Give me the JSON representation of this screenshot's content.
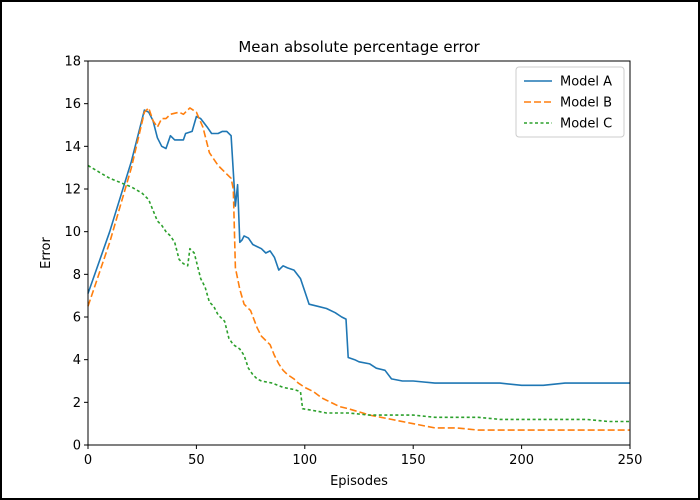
{
  "chart_data": {
    "type": "line",
    "title": "Mean absolute percentage error",
    "xlabel": "Episodes",
    "ylabel": "Error",
    "xlim": [
      0,
      250
    ],
    "ylim": [
      0,
      18
    ],
    "xticks": [
      "0",
      "50",
      "100",
      "150",
      "200",
      "250"
    ],
    "yticks": [
      "0",
      "2",
      "4",
      "6",
      "8",
      "10",
      "12",
      "14",
      "16",
      "18"
    ],
    "grid": false,
    "legend_position": "top-right",
    "series": [
      {
        "name": "Model A",
        "color": "#1f77b4",
        "style": "solid",
        "points": [
          [
            0,
            7.1
          ],
          [
            10,
            10.0
          ],
          [
            20,
            13.3
          ],
          [
            26,
            15.7
          ],
          [
            28,
            15.6
          ],
          [
            30,
            15.2
          ],
          [
            32,
            14.4
          ],
          [
            34,
            14.0
          ],
          [
            36,
            13.9
          ],
          [
            38,
            14.5
          ],
          [
            40,
            14.3
          ],
          [
            44,
            14.3
          ],
          [
            45,
            14.6
          ],
          [
            48,
            14.7
          ],
          [
            50,
            15.4
          ],
          [
            52,
            15.3
          ],
          [
            55,
            14.9
          ],
          [
            57,
            14.6
          ],
          [
            60,
            14.6
          ],
          [
            62,
            14.7
          ],
          [
            64,
            14.7
          ],
          [
            66,
            14.5
          ],
          [
            68,
            11.2
          ],
          [
            69,
            12.2
          ],
          [
            70,
            9.5
          ],
          [
            71,
            9.6
          ],
          [
            72,
            9.8
          ],
          [
            74,
            9.7
          ],
          [
            76,
            9.4
          ],
          [
            78,
            9.3
          ],
          [
            80,
            9.2
          ],
          [
            82,
            9.0
          ],
          [
            84,
            9.1
          ],
          [
            86,
            8.8
          ],
          [
            88,
            8.2
          ],
          [
            90,
            8.4
          ],
          [
            92,
            8.3
          ],
          [
            95,
            8.2
          ],
          [
            98,
            7.8
          ],
          [
            100,
            7.2
          ],
          [
            102,
            6.6
          ],
          [
            106,
            6.5
          ],
          [
            110,
            6.4
          ],
          [
            114,
            6.2
          ],
          [
            117,
            6.0
          ],
          [
            119,
            5.9
          ],
          [
            120,
            4.1
          ],
          [
            123,
            4.0
          ],
          [
            125,
            3.9
          ],
          [
            130,
            3.8
          ],
          [
            133,
            3.6
          ],
          [
            137,
            3.5
          ],
          [
            140,
            3.1
          ],
          [
            145,
            3.0
          ],
          [
            150,
            3.0
          ],
          [
            160,
            2.9
          ],
          [
            170,
            2.9
          ],
          [
            180,
            2.9
          ],
          [
            190,
            2.9
          ],
          [
            200,
            2.8
          ],
          [
            210,
            2.8
          ],
          [
            220,
            2.9
          ],
          [
            230,
            2.9
          ],
          [
            240,
            2.9
          ],
          [
            250,
            2.9
          ]
        ]
      },
      {
        "name": "Model B",
        "color": "#ff7f0e",
        "style": "dashed",
        "points": [
          [
            0,
            6.5
          ],
          [
            10,
            9.5
          ],
          [
            20,
            13.0
          ],
          [
            26,
            15.6
          ],
          [
            28,
            15.8
          ],
          [
            30,
            15.2
          ],
          [
            32,
            14.9
          ],
          [
            34,
            15.3
          ],
          [
            36,
            15.3
          ],
          [
            38,
            15.5
          ],
          [
            42,
            15.6
          ],
          [
            44,
            15.5
          ],
          [
            47,
            15.8
          ],
          [
            50,
            15.6
          ],
          [
            53,
            14.9
          ],
          [
            56,
            13.7
          ],
          [
            60,
            13.1
          ],
          [
            63,
            12.8
          ],
          [
            66,
            12.5
          ],
          [
            67,
            12.0
          ],
          [
            68,
            8.3
          ],
          [
            70,
            7.3
          ],
          [
            72,
            6.6
          ],
          [
            75,
            6.3
          ],
          [
            78,
            5.5
          ],
          [
            80,
            5.1
          ],
          [
            82,
            4.9
          ],
          [
            84,
            4.7
          ],
          [
            86,
            4.2
          ],
          [
            88,
            3.8
          ],
          [
            90,
            3.5
          ],
          [
            92,
            3.3
          ],
          [
            95,
            3.1
          ],
          [
            97,
            2.9
          ],
          [
            100,
            2.7
          ],
          [
            104,
            2.5
          ],
          [
            108,
            2.2
          ],
          [
            112,
            2.0
          ],
          [
            116,
            1.8
          ],
          [
            120,
            1.7
          ],
          [
            130,
            1.4
          ],
          [
            140,
            1.2
          ],
          [
            150,
            1.0
          ],
          [
            160,
            0.8
          ],
          [
            170,
            0.8
          ],
          [
            180,
            0.7
          ],
          [
            190,
            0.7
          ],
          [
            200,
            0.7
          ],
          [
            210,
            0.7
          ],
          [
            220,
            0.7
          ],
          [
            230,
            0.7
          ],
          [
            240,
            0.7
          ],
          [
            250,
            0.7
          ]
        ]
      },
      {
        "name": "Model C",
        "color": "#2ca02c",
        "style": "dotted",
        "points": [
          [
            0,
            13.1
          ],
          [
            5,
            12.8
          ],
          [
            10,
            12.5
          ],
          [
            15,
            12.3
          ],
          [
            20,
            12.1
          ],
          [
            25,
            11.8
          ],
          [
            28,
            11.5
          ],
          [
            30,
            11.0
          ],
          [
            32,
            10.5
          ],
          [
            34,
            10.3
          ],
          [
            36,
            10.0
          ],
          [
            38,
            9.8
          ],
          [
            40,
            9.5
          ],
          [
            42,
            8.7
          ],
          [
            44,
            8.5
          ],
          [
            46,
            8.4
          ],
          [
            47,
            9.2
          ],
          [
            49,
            9.0
          ],
          [
            50,
            8.6
          ],
          [
            52,
            7.8
          ],
          [
            54,
            7.4
          ],
          [
            56,
            6.7
          ],
          [
            58,
            6.5
          ],
          [
            60,
            6.1
          ],
          [
            63,
            5.8
          ],
          [
            65,
            5.0
          ],
          [
            67,
            4.7
          ],
          [
            70,
            4.5
          ],
          [
            72,
            4.2
          ],
          [
            74,
            3.6
          ],
          [
            76,
            3.3
          ],
          [
            78,
            3.1
          ],
          [
            80,
            3.0
          ],
          [
            85,
            2.9
          ],
          [
            90,
            2.7
          ],
          [
            95,
            2.6
          ],
          [
            98,
            2.5
          ],
          [
            99,
            1.7
          ],
          [
            105,
            1.6
          ],
          [
            110,
            1.5
          ],
          [
            120,
            1.5
          ],
          [
            130,
            1.4
          ],
          [
            140,
            1.4
          ],
          [
            150,
            1.4
          ],
          [
            160,
            1.3
          ],
          [
            170,
            1.3
          ],
          [
            180,
            1.3
          ],
          [
            190,
            1.2
          ],
          [
            200,
            1.2
          ],
          [
            210,
            1.2
          ],
          [
            220,
            1.2
          ],
          [
            230,
            1.2
          ],
          [
            240,
            1.1
          ],
          [
            250,
            1.1
          ]
        ]
      }
    ]
  }
}
